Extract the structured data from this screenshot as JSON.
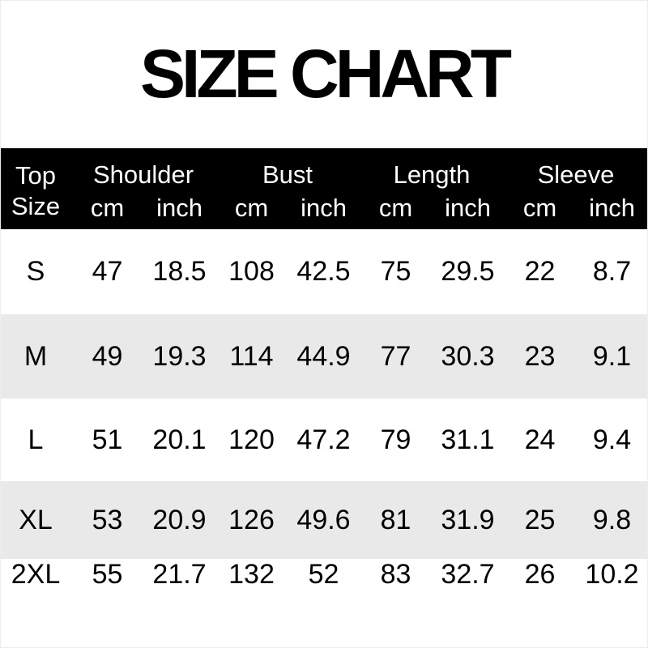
{
  "title": "SIZE CHART",
  "table": {
    "corner": {
      "line1": "Top",
      "line2": "Size"
    },
    "groups": [
      "Shoulder",
      "Bust",
      "Length",
      "Sleeve"
    ],
    "units": [
      "cm",
      "inch",
      "cm",
      "inch",
      "cm",
      "inch",
      "cm",
      "inch"
    ],
    "rows": [
      {
        "size": "S",
        "values": [
          "47",
          "18.5",
          "108",
          "42.5",
          "75",
          "29.5",
          "22",
          "8.7"
        ]
      },
      {
        "size": "M",
        "values": [
          "49",
          "19.3",
          "114",
          "44.9",
          "77",
          "30.3",
          "23",
          "9.1"
        ]
      },
      {
        "size": "L",
        "values": [
          "51",
          "20.1",
          "120",
          "47.2",
          "79",
          "31.1",
          "24",
          "9.4"
        ]
      },
      {
        "size": "XL",
        "values": [
          "53",
          "20.9",
          "126",
          "49.6",
          "81",
          "31.9",
          "25",
          "9.8"
        ]
      },
      {
        "size": "2XL",
        "values": [
          "55",
          "21.7",
          "132",
          "52",
          "83",
          "32.7",
          "26",
          "10.2"
        ]
      }
    ]
  },
  "colors": {
    "header_bg": "#000000",
    "header_text": "#ffffff",
    "row_bg": "#ffffff",
    "row_alt_bg": "#e9e9e9",
    "text": "#000000"
  }
}
